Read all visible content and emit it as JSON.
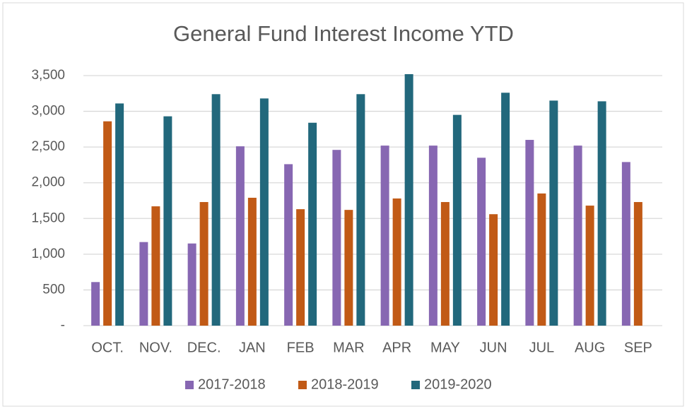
{
  "chart_data": {
    "type": "bar",
    "title": "General Fund Interest Income YTD",
    "categories": [
      "OCT.",
      "NOV.",
      "DEC.",
      "JAN",
      "FEB",
      "MAR",
      "APR",
      "MAY",
      "JUN",
      "JUL",
      "AUG",
      "SEP"
    ],
    "series": [
      {
        "name": "2017-2018",
        "color": "#8767b2",
        "values": [
          610,
          1170,
          1150,
          2510,
          2260,
          2460,
          2520,
          2520,
          2350,
          2600,
          2520,
          2290
        ]
      },
      {
        "name": "2018-2019",
        "color": "#c15a16",
        "values": [
          2860,
          1670,
          1730,
          1790,
          1630,
          1620,
          1780,
          1730,
          1560,
          1850,
          1680,
          1730
        ]
      },
      {
        "name": "2019-2020",
        "color": "#22687c",
        "values": [
          3110,
          2930,
          3240,
          3180,
          2840,
          3240,
          3520,
          2950,
          3260,
          3150,
          3140,
          null
        ]
      }
    ],
    "ylim": [
      0,
      3500
    ],
    "yticks": [
      {
        "value": 0,
        "label": "-"
      },
      500,
      {
        "value": 1000,
        "label": "1,000"
      },
      {
        "value": 1500,
        "label": "1,500"
      },
      {
        "value": 2000,
        "label": "2,000"
      },
      {
        "value": 2500,
        "label": "2,500"
      },
      {
        "value": 3000,
        "label": "3,000"
      },
      {
        "value": 3500,
        "label": "3,500"
      }
    ],
    "grid": true,
    "legend": "bottom"
  }
}
